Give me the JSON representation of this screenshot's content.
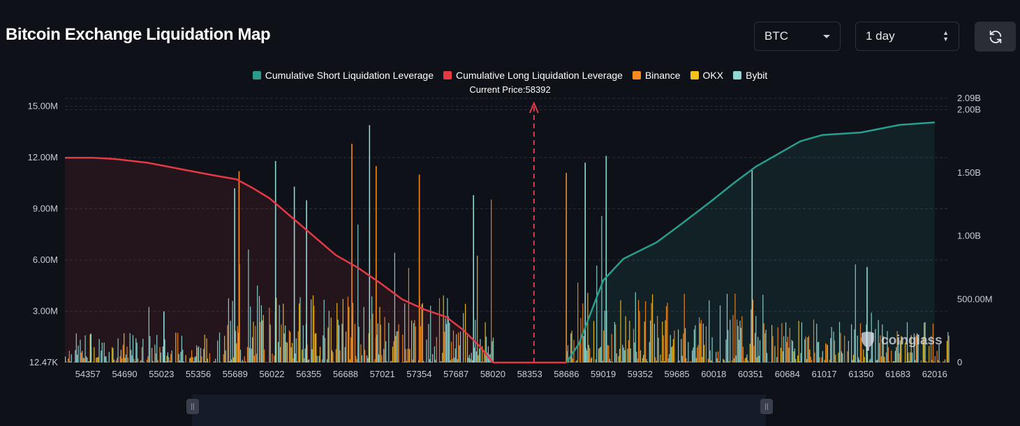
{
  "header": {
    "title": "Bitcoin Exchange Liquidation Map"
  },
  "controls": {
    "coin": "BTC",
    "range": "1 day",
    "refresh_icon": "refresh-icon"
  },
  "colors": {
    "short": "#2a9d8f",
    "long": "#e63946",
    "binance": "#f58a1f",
    "okx": "#f2c21b",
    "bybit": "#8fd8d3"
  },
  "watermark": "coinglass",
  "chart_data": {
    "type": "bar",
    "legend": [
      {
        "name": "Cumulative Short Liquidation Leverage",
        "color": "#2a9d8f"
      },
      {
        "name": "Cumulative Long Liquidation Leverage",
        "color": "#e63946"
      },
      {
        "name": "Binance",
        "color": "#f58a1f"
      },
      {
        "name": "OKX",
        "color": "#f2c21b"
      },
      {
        "name": "Bybit",
        "color": "#8fd8d3"
      }
    ],
    "current_price_label": "Current Price:58392",
    "current_price": 58392,
    "x_range": [
      54150,
      62150
    ],
    "x_ticks": [
      "54357",
      "54690",
      "55023",
      "55356",
      "55689",
      "56022",
      "56355",
      "56688",
      "57021",
      "57354",
      "57687",
      "58020",
      "58353",
      "58686",
      "59019",
      "59352",
      "59685",
      "60018",
      "60351",
      "60684",
      "61017",
      "61350",
      "61683",
      "62016"
    ],
    "y_left_ticks": [
      "12.47K",
      "3.00M",
      "6.00M",
      "9.00M",
      "12.00M",
      "15.00M"
    ],
    "y_left_range": [
      12470,
      15000000
    ],
    "y_right_ticks": [
      "0",
      "500.00M",
      "1.00B",
      "1.50B",
      "2.00B",
      "2.09B"
    ],
    "y_right_range": [
      0,
      2090000000
    ],
    "cumulative_long": [
      [
        54150,
        1620000000.0
      ],
      [
        54400,
        1620000000.0
      ],
      [
        54600,
        1610000000.0
      ],
      [
        54900,
        1580000000.0
      ],
      [
        55200,
        1530000000.0
      ],
      [
        55500,
        1480000000.0
      ],
      [
        55700,
        1450000000.0
      ],
      [
        55850,
        1380000000.0
      ],
      [
        56000,
        1300000000.0
      ],
      [
        56200,
        1150000000.0
      ],
      [
        56400,
        1000000000.0
      ],
      [
        56600,
        850000000.0
      ],
      [
        56800,
        750000000.0
      ],
      [
        57000,
        630000000.0
      ],
      [
        57200,
        500000000.0
      ],
      [
        57400,
        420000000.0
      ],
      [
        57600,
        360000000.0
      ],
      [
        57750,
        260000000.0
      ],
      [
        57900,
        130000000.0
      ],
      [
        58020,
        0
      ]
    ],
    "cumulative_short": [
      [
        58686,
        0
      ],
      [
        58800,
        150000000.0
      ],
      [
        58900,
        380000000.0
      ],
      [
        59019,
        650000000.0
      ],
      [
        59200,
        820000000.0
      ],
      [
        59500,
        950000000.0
      ],
      [
        59700,
        1080000000.0
      ],
      [
        60000,
        1280000000.0
      ],
      [
        60200,
        1420000000.0
      ],
      [
        60400,
        1550000000.0
      ],
      [
        60600,
        1650000000.0
      ],
      [
        60800,
        1750000000.0
      ],
      [
        61000,
        1800000000.0
      ],
      [
        61350,
        1820000000.0
      ],
      [
        61700,
        1880000000.0
      ],
      [
        62016,
        1900000000.0
      ]
    ],
    "peak_bars": [
      {
        "x": 54380,
        "value": 1700000.0,
        "exchange": "bybit"
      },
      {
        "x": 55040,
        "value": 3000000.0,
        "exchange": "bybit"
      },
      {
        "x": 55680,
        "value": 10200000.0,
        "exchange": "bybit"
      },
      {
        "x": 55720,
        "value": 11200000.0,
        "exchange": "binance"
      },
      {
        "x": 56050,
        "value": 11800000.0,
        "exchange": "bybit"
      },
      {
        "x": 56220,
        "value": 10300000.0,
        "exchange": "bybit"
      },
      {
        "x": 56330,
        "value": 9500000.0,
        "exchange": "bybit"
      },
      {
        "x": 56740,
        "value": 12800000.0,
        "exchange": "binance"
      },
      {
        "x": 56900,
        "value": 13900000.0,
        "exchange": "bybit"
      },
      {
        "x": 56960,
        "value": 11500000.0,
        "exchange": "binance"
      },
      {
        "x": 57350,
        "value": 11000000.0,
        "exchange": "binance"
      },
      {
        "x": 57840,
        "value": 9800000.0,
        "exchange": "bybit"
      },
      {
        "x": 58680,
        "value": 11100000.0,
        "exchange": "binance"
      },
      {
        "x": 58850,
        "value": 11700000.0,
        "exchange": "bybit"
      },
      {
        "x": 59040,
        "value": 12100000.0,
        "exchange": "bybit"
      },
      {
        "x": 60360,
        "value": 11300000.0,
        "exchange": "bybit"
      },
      {
        "x": 61400,
        "value": 5600000.0,
        "exchange": "bybit"
      }
    ]
  }
}
